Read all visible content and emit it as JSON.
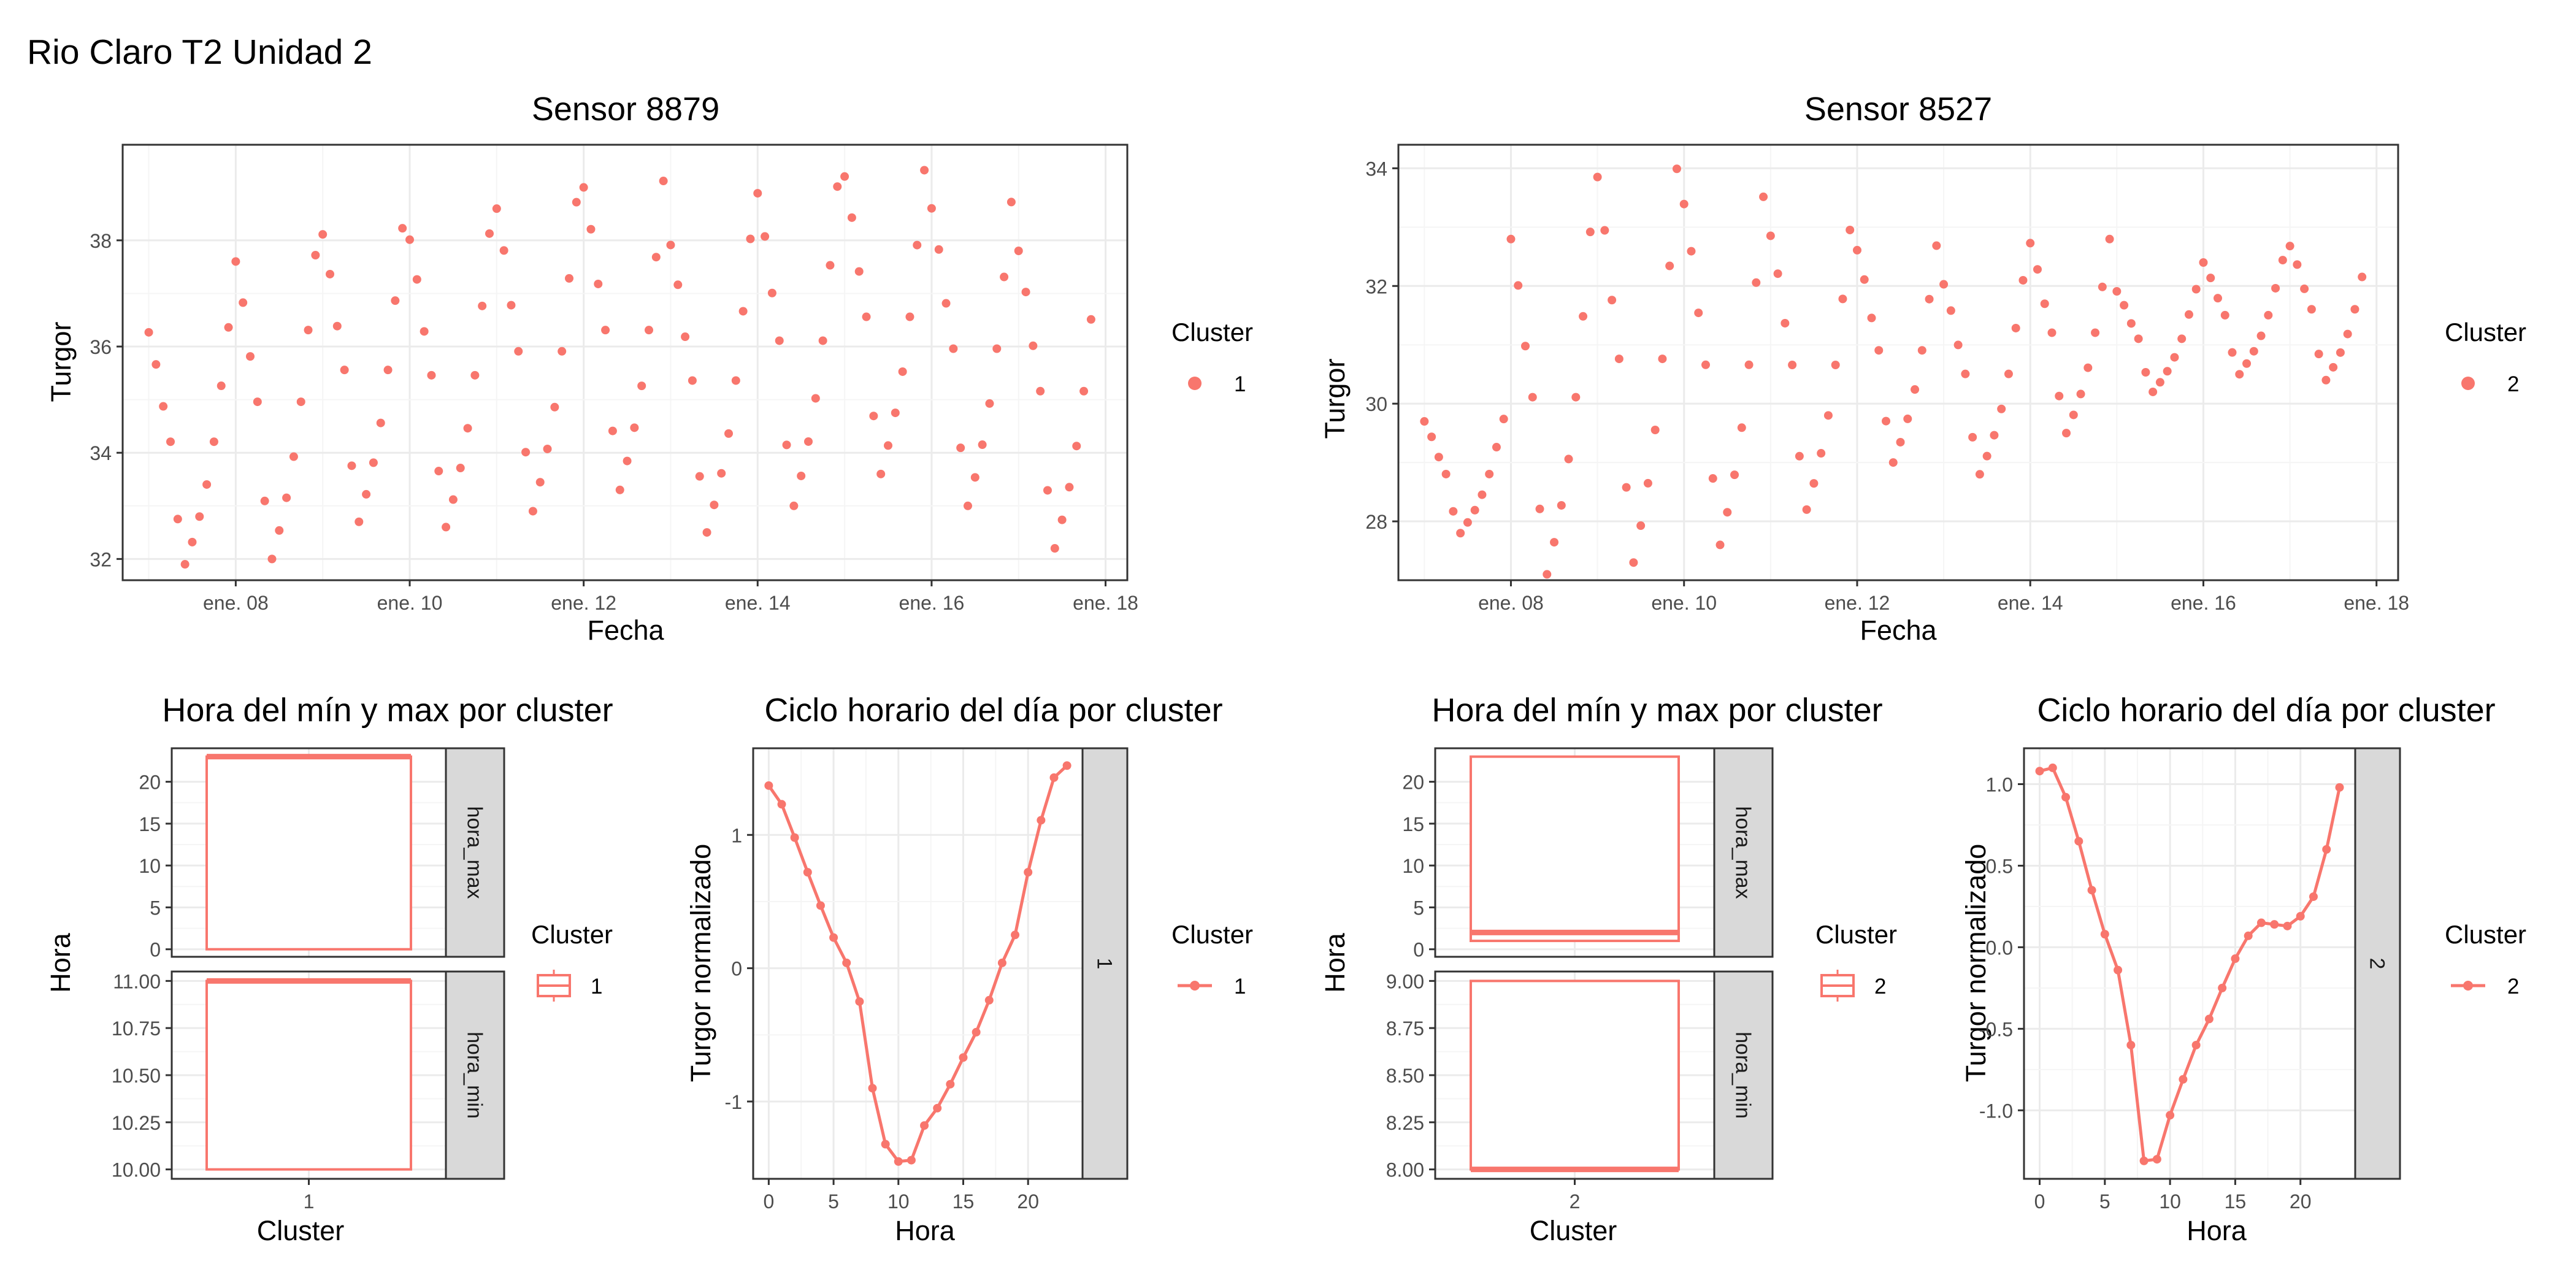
{
  "page_title": "Rio Claro T2 Unidad 2",
  "colors": {
    "series": "#F8766D",
    "panel_border": "#333333",
    "grid_major": "#EBEBEB",
    "grid_minor": "#F5F5F5",
    "strip_fill": "#D9D9D9"
  },
  "chart_data": [
    {
      "id": "ts1",
      "type": "scatter",
      "title": "Sensor 8879",
      "xlabel": "Fecha",
      "ylabel": "Turgor",
      "xlim": [
        6.7,
        18.25
      ],
      "ylim": [
        31.6,
        39.8
      ],
      "x_ticks": [
        8,
        10,
        12,
        14,
        16,
        18
      ],
      "x_tick_labels": [
        "ene. 08",
        "ene. 10",
        "ene. 12",
        "ene. 14",
        "ene. 16",
        "ene. 18"
      ],
      "y_ticks": [
        32,
        34,
        36,
        38
      ],
      "y_tick_labels": [
        "32",
        "34",
        "36",
        "38"
      ],
      "legend": {
        "title": "Cluster",
        "entries": [
          "1"
        ],
        "placement": "right"
      },
      "series": [
        {
          "name": "1",
          "cycle_template": "daily",
          "days_start": 7.0,
          "days_end": 17.9,
          "daily_max": [
            36.5,
            37.9,
            38.4,
            38.3,
            38.9,
            39.3,
            38.2,
            39.2,
            39.5,
            38.9,
            38.1,
            36.7
          ],
          "daily_min": [
            31.9,
            32.0,
            32.7,
            32.6,
            32.9,
            33.3,
            32.5,
            33.0,
            33.6,
            33.0,
            32.2,
            32.2
          ]
        }
      ]
    },
    {
      "id": "ts2",
      "type": "scatter",
      "title": "Sensor 8527",
      "xlabel": "Fecha",
      "ylabel": "Turgor",
      "xlim": [
        6.7,
        18.25
      ],
      "ylim": [
        27.0,
        34.4
      ],
      "x_ticks": [
        8,
        10,
        12,
        14,
        16,
        18
      ],
      "x_tick_labels": [
        "ene. 08",
        "ene. 10",
        "ene. 12",
        "ene. 14",
        "ene. 16",
        "ene. 18"
      ],
      "y_ticks": [
        28,
        30,
        32,
        34
      ],
      "y_tick_labels": [
        "28",
        "30",
        "32",
        "34"
      ],
      "legend": {
        "title": "Cluster",
        "entries": [
          "2"
        ],
        "placement": "right"
      },
      "series": [
        {
          "name": "2",
          "cycle_template": "daily",
          "days_start": 7.0,
          "days_end": 17.9,
          "daily_max": [
            29.8,
            33.1,
            34.2,
            33.7,
            33.1,
            32.8,
            32.2,
            32.9,
            32.0,
            32.5,
            32.8,
            31.6
          ],
          "daily_min": [
            27.8,
            27.1,
            27.3,
            27.6,
            28.2,
            29.0,
            28.8,
            29.5,
            30.2,
            30.5,
            30.4,
            31.4
          ]
        }
      ]
    },
    {
      "id": "box1",
      "type": "box",
      "title": "Hora del mín y max por cluster",
      "xlabel": "Cluster",
      "ylabel": "Hora",
      "categories": [
        "1"
      ],
      "legend": {
        "title": "Cluster",
        "entries": [
          "1"
        ],
        "placement": "right"
      },
      "facets": [
        {
          "strip": "hora_max",
          "ylim": [
            -0.9,
            24.0
          ],
          "y_ticks": [
            0,
            5,
            10,
            15,
            20
          ],
          "y_tick_labels": [
            "0",
            "5",
            "10",
            "15",
            "20"
          ],
          "boxes": [
            {
              "category": "1",
              "q1": 0,
              "median": 23,
              "q3": 23,
              "whisker_low": 0,
              "whisker_high": 23
            }
          ]
        },
        {
          "strip": "hora_min",
          "ylim": [
            9.95,
            11.05
          ],
          "y_ticks": [
            10.0,
            10.25,
            10.5,
            10.75,
            11.0
          ],
          "y_tick_labels": [
            "10.00",
            "10.25",
            "10.50",
            "10.75",
            "11.00"
          ],
          "boxes": [
            {
              "category": "1",
              "q1": 10,
              "median": 11,
              "q3": 11,
              "whisker_low": 10,
              "whisker_high": 11
            }
          ]
        }
      ]
    },
    {
      "id": "line1",
      "type": "line",
      "title": "Ciclo horario del día por cluster",
      "xlabel": "Hora",
      "ylabel": "Turgor normalizado",
      "strip": "1",
      "xlim": [
        -1.2,
        24.2
      ],
      "ylim": [
        -1.58,
        1.65
      ],
      "x_ticks": [
        0,
        5,
        10,
        15,
        20
      ],
      "x_tick_labels": [
        "0",
        "5",
        "10",
        "15",
        "20"
      ],
      "y_ticks": [
        -1,
        0,
        1
      ],
      "y_tick_labels": [
        "-1",
        "0",
        "1"
      ],
      "legend": {
        "title": "Cluster",
        "entries": [
          "1"
        ],
        "placement": "right"
      },
      "x": [
        0,
        1,
        2,
        3,
        4,
        5,
        6,
        7,
        8,
        9,
        10,
        11,
        12,
        13,
        14,
        15,
        16,
        17,
        18,
        19,
        20,
        21,
        22,
        23
      ],
      "series": [
        {
          "name": "1",
          "values": [
            1.37,
            1.23,
            0.98,
            0.72,
            0.47,
            0.23,
            0.04,
            -0.25,
            -0.9,
            -1.32,
            -1.45,
            -1.44,
            -1.18,
            -1.05,
            -0.87,
            -0.67,
            -0.48,
            -0.24,
            0.04,
            0.25,
            0.72,
            1.11,
            1.43,
            1.52
          ]
        }
      ]
    },
    {
      "id": "box2",
      "type": "box",
      "title": "Hora del mín y max por cluster",
      "xlabel": "Cluster",
      "ylabel": "Hora",
      "categories": [
        "2"
      ],
      "legend": {
        "title": "Cluster",
        "entries": [
          "2"
        ],
        "placement": "right"
      },
      "facets": [
        {
          "strip": "hora_max",
          "ylim": [
            -0.9,
            24.0
          ],
          "y_ticks": [
            0,
            5,
            10,
            15,
            20
          ],
          "y_tick_labels": [
            "0",
            "5",
            "10",
            "15",
            "20"
          ],
          "boxes": [
            {
              "category": "2",
              "q1": 1,
              "median": 2,
              "q3": 23,
              "whisker_low": 1,
              "whisker_high": 23
            }
          ]
        },
        {
          "strip": "hora_min",
          "ylim": [
            7.95,
            9.05
          ],
          "y_ticks": [
            8.0,
            8.25,
            8.5,
            8.75,
            9.0
          ],
          "y_tick_labels": [
            "8.00",
            "8.25",
            "8.50",
            "8.75",
            "9.00"
          ],
          "boxes": [
            {
              "category": "2",
              "q1": 8,
              "median": 8,
              "q3": 9,
              "whisker_low": 8,
              "whisker_high": 9
            }
          ]
        }
      ]
    },
    {
      "id": "line2",
      "type": "line",
      "title": "Ciclo horario del día por cluster",
      "xlabel": "Hora",
      "ylabel": "Turgor normalizado",
      "strip": "2",
      "xlim": [
        -1.2,
        24.2
      ],
      "ylim": [
        -1.42,
        1.22
      ],
      "x_ticks": [
        0,
        5,
        10,
        15,
        20
      ],
      "x_tick_labels": [
        "0",
        "5",
        "10",
        "15",
        "20"
      ],
      "y_ticks": [
        -1.0,
        -0.5,
        0.0,
        0.5,
        1.0
      ],
      "y_tick_labels": [
        "-1.0",
        "-0.5",
        "0.0",
        "0.5",
        "1.0"
      ],
      "legend": {
        "title": "Cluster",
        "entries": [
          "2"
        ],
        "placement": "right"
      },
      "x": [
        0,
        1,
        2,
        3,
        4,
        5,
        6,
        7,
        8,
        9,
        10,
        11,
        12,
        13,
        14,
        15,
        16,
        17,
        18,
        19,
        20,
        21,
        22,
        23
      ],
      "series": [
        {
          "name": "2",
          "values": [
            1.08,
            1.1,
            0.92,
            0.65,
            0.35,
            0.08,
            -0.14,
            -0.6,
            -1.31,
            -1.3,
            -1.03,
            -0.81,
            -0.6,
            -0.44,
            -0.25,
            -0.07,
            0.07,
            0.15,
            0.14,
            0.13,
            0.19,
            0.31,
            0.6,
            0.98
          ]
        }
      ]
    }
  ]
}
